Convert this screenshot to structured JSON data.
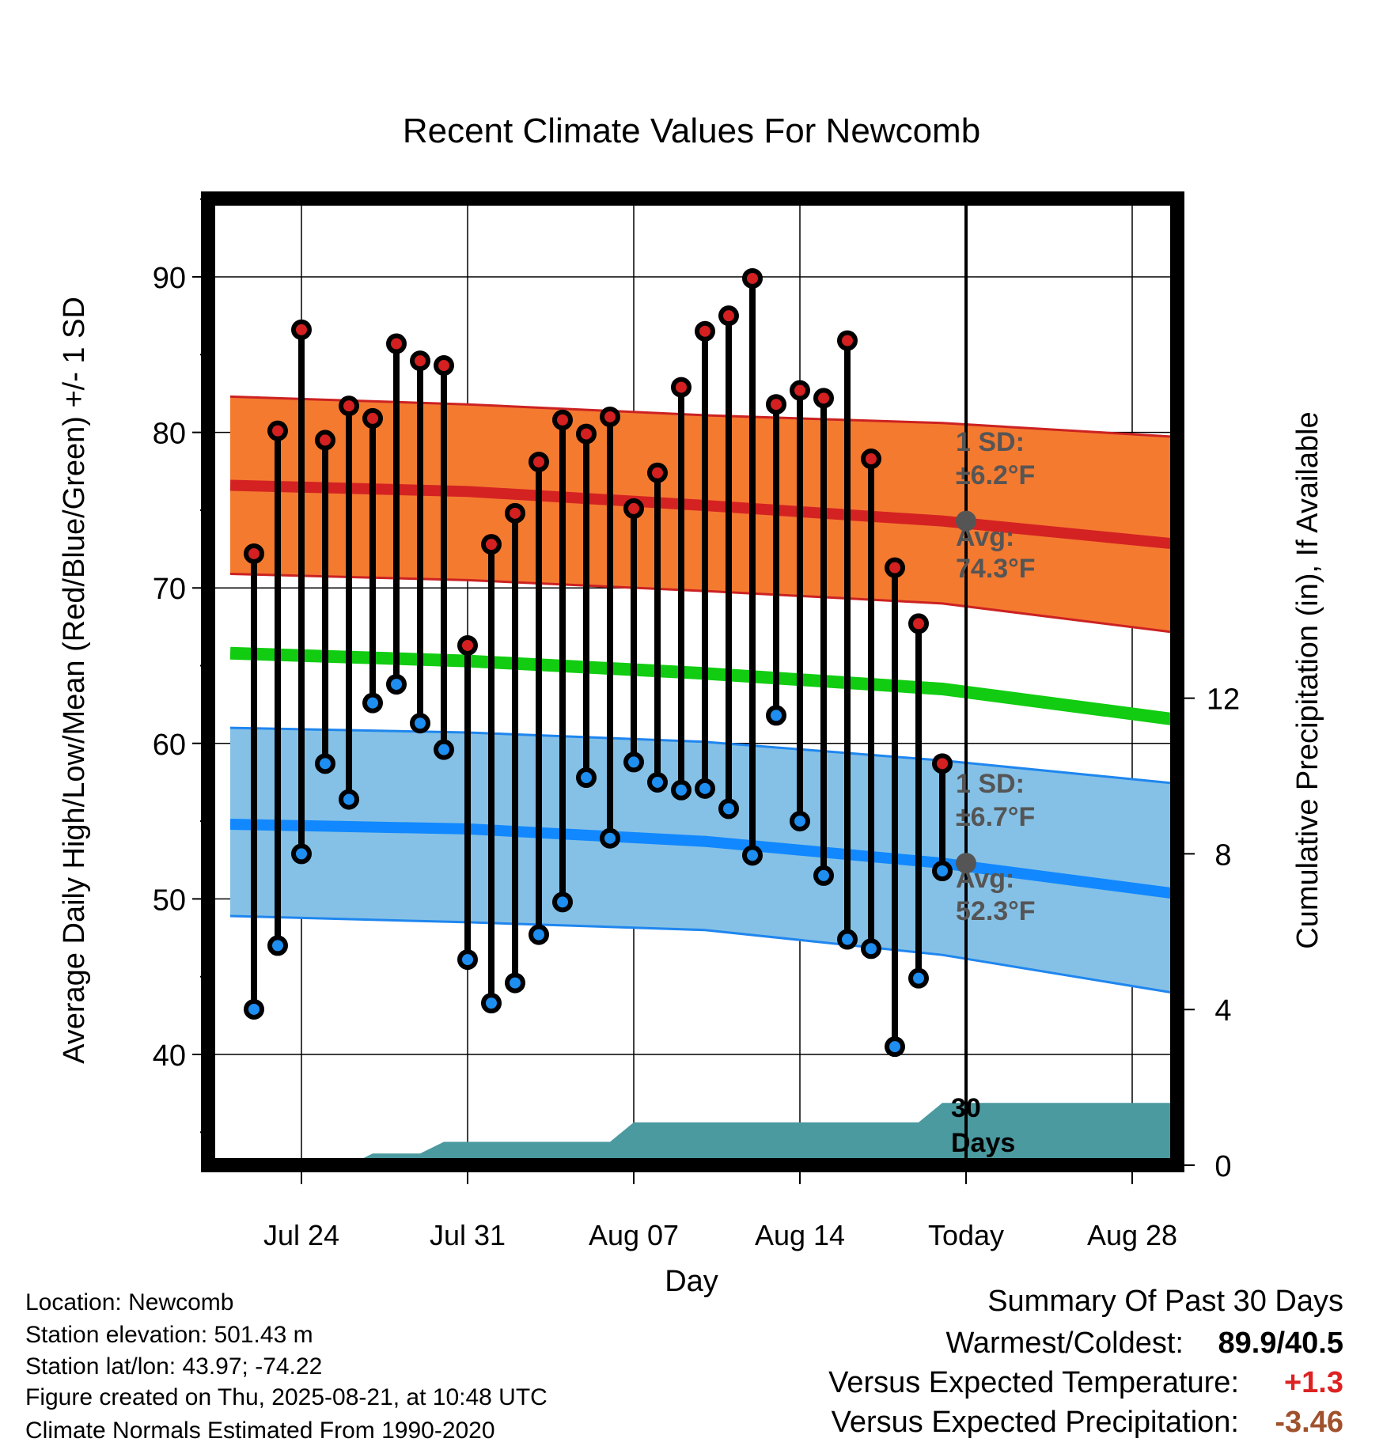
{
  "chart_data": {
    "type": "line",
    "title": "Recent Climate Values For Newcomb",
    "xlabel": "Day",
    "ylabel": "Average Daily High/Low/Mean (Red/Blue/Green) +/- 1 SD",
    "y2label": "Cumulative Precipitation (in), If Available",
    "x_tick_labels": [
      "Jul 24",
      "Jul 31",
      "Aug 07",
      "Aug 14",
      "Today",
      "Aug 28"
    ],
    "x_tick_days": [
      3,
      10,
      17,
      24,
      31,
      38
    ],
    "xlim": [
      -0.3,
      41.2
    ],
    "ylim": [
      32.5,
      95
    ],
    "y_ticks": [
      40,
      50,
      60,
      70,
      80,
      90
    ],
    "y2lim": [
      0,
      25
    ],
    "y2_ticks": [
      0,
      4,
      8,
      12
    ],
    "grid": true,
    "today_day": 31,
    "days": [
      1,
      2,
      3,
      4,
      5,
      6,
      7,
      8,
      9,
      10,
      11,
      12,
      13,
      14,
      15,
      16,
      17,
      18,
      19,
      20,
      21,
      22,
      23,
      24,
      25,
      26,
      27,
      28,
      29,
      30
    ],
    "series": [
      {
        "name": "Daily High",
        "color": "#dd2222",
        "values": [
          72.2,
          80.1,
          86.6,
          79.5,
          81.7,
          80.9,
          85.7,
          84.6,
          84.3,
          66.3,
          72.8,
          74.8,
          78.1,
          80.8,
          79.9,
          81.0,
          75.1,
          77.4,
          82.9,
          86.5,
          87.5,
          89.9,
          81.8,
          82.7,
          82.2,
          85.9,
          78.3,
          71.3,
          67.7,
          58.7
        ]
      },
      {
        "name": "Daily Low",
        "color": "#2288ee",
        "values": [
          42.9,
          47.0,
          52.9,
          58.7,
          56.4,
          62.6,
          63.8,
          61.3,
          59.6,
          46.1,
          43.3,
          44.6,
          47.7,
          49.8,
          57.8,
          53.9,
          58.8,
          57.5,
          57.0,
          57.1,
          55.8,
          52.8,
          61.8,
          55.0,
          51.5,
          47.4,
          46.8,
          40.5,
          44.9,
          51.8
        ]
      },
      {
        "name": "Normal High",
        "color": "#cc2222",
        "points": [
          [
            0,
            76.6
          ],
          [
            10,
            76.2
          ],
          [
            20,
            75.3
          ],
          [
            30,
            74.3
          ],
          [
            40,
            72.8
          ]
        ],
        "sd_upper": [
          [
            0,
            82.3
          ],
          [
            10,
            81.8
          ],
          [
            20,
            81.1
          ],
          [
            30,
            80.6
          ],
          [
            40,
            79.7
          ]
        ],
        "sd_lower": [
          [
            0,
            70.9
          ],
          [
            10,
            70.5
          ],
          [
            20,
            69.8
          ],
          [
            30,
            69.0
          ],
          [
            40,
            67.1
          ]
        ]
      },
      {
        "name": "Normal Mean",
        "color": "#11cc11",
        "points": [
          [
            0,
            65.8
          ],
          [
            10,
            65.3
          ],
          [
            20,
            64.5
          ],
          [
            30,
            63.5
          ],
          [
            40,
            61.5
          ]
        ]
      },
      {
        "name": "Normal Low",
        "color": "#1188ff",
        "points": [
          [
            0,
            54.8
          ],
          [
            10,
            54.5
          ],
          [
            20,
            53.7
          ],
          [
            30,
            52.3
          ],
          [
            40,
            50.3
          ]
        ],
        "sd_upper": [
          [
            0,
            61.0
          ],
          [
            10,
            60.7
          ],
          [
            20,
            60.1
          ],
          [
            30,
            58.9
          ],
          [
            40,
            57.4
          ]
        ],
        "sd_lower": [
          [
            0,
            48.9
          ],
          [
            10,
            48.5
          ],
          [
            20,
            48.0
          ],
          [
            30,
            46.4
          ],
          [
            40,
            43.9
          ]
        ]
      },
      {
        "name": "Cumulative Precipitation",
        "color": "#4a9aa0",
        "axis": "right",
        "points": [
          [
            5,
            0.0
          ],
          [
            6,
            0.3
          ],
          [
            8,
            0.3
          ],
          [
            9,
            0.6
          ],
          [
            16,
            0.6
          ],
          [
            17,
            1.1
          ],
          [
            29,
            1.1
          ],
          [
            30,
            1.6
          ],
          [
            41.2,
            1.6
          ]
        ]
      }
    ],
    "annotations": {
      "high_sd_1": "1 SD:",
      "high_sd_2": "±6.2°F",
      "high_avg_1": "Avg:",
      "high_avg_2": "74.3°F",
      "low_sd_1": "1 SD:",
      "low_sd_2": "±6.7°F",
      "low_avg_1": "Avg:",
      "low_avg_2": "52.3°F",
      "days_1": "30",
      "days_2": "Days"
    }
  },
  "footer": {
    "location": "Location: Newcomb",
    "elevation": "Station elevation: 501.43 m",
    "latlon": "Station lat/lon: 43.97; -74.22",
    "created": "Figure created on Thu, 2025-08-21, at 10:48 UTC",
    "normals": "Climate Normals Estimated From 1990-2020"
  },
  "summary": {
    "heading": "Summary Of Past 30 Days",
    "warm_cold_label": "Warmest/Coldest:",
    "warm_cold_value": "89.9/40.5",
    "temp_label": "Versus Expected Temperature:",
    "temp_value": "+1.3",
    "temp_color": "#dd2222",
    "precip_label": "Versus Expected Precipitation:",
    "precip_value": "-3.46",
    "precip_color": "#a0522d"
  }
}
